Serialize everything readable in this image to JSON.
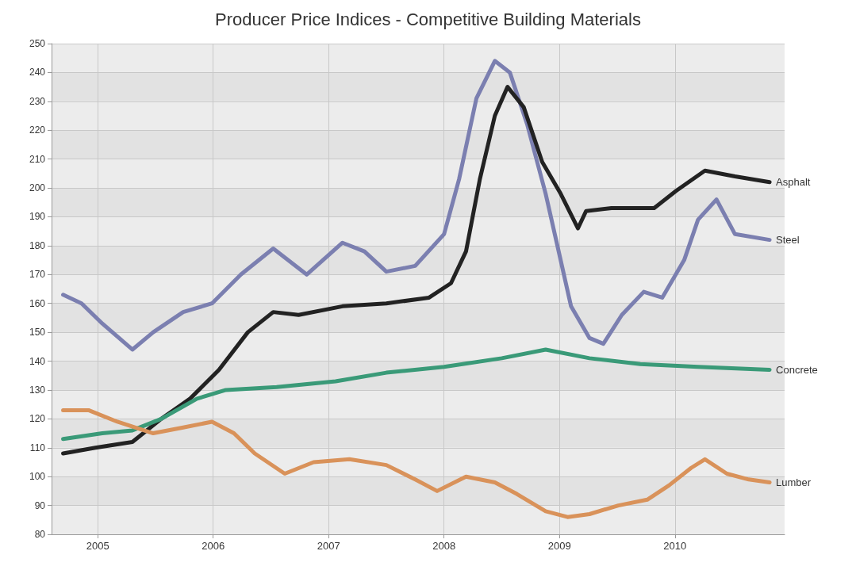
{
  "chart_data": {
    "type": "line",
    "title": "Producer Price Indices - Competitive Building Materials",
    "xlim": [
      2004.6,
      2010.95
    ],
    "xticks": [
      2005,
      2006,
      2007,
      2008,
      2009,
      2010
    ],
    "ylim": [
      80,
      250
    ],
    "yticks": [
      80,
      90,
      100,
      110,
      120,
      130,
      140,
      150,
      160,
      170,
      180,
      190,
      200,
      210,
      220,
      230,
      240,
      250
    ],
    "grid": true,
    "legend": false,
    "marker": "none",
    "line_style": "solid",
    "series": [
      {
        "name": "Steel",
        "color": "#7b7fb0",
        "x": [
          2004.7,
          2004.86,
          2005.04,
          2005.3,
          2005.48,
          2005.74,
          2005.99,
          2006.24,
          2006.52,
          2006.81,
          2007.12,
          2007.31,
          2007.5,
          2007.75,
          2008.0,
          2008.13,
          2008.28,
          2008.44,
          2008.57,
          2008.72,
          2008.88,
          2009.01,
          2009.1,
          2009.26,
          2009.38,
          2009.54,
          2009.73,
          2009.89,
          2010.08,
          2010.2,
          2010.36,
          2010.52,
          2010.82
        ],
        "values": [
          163,
          160,
          153,
          144,
          150,
          157,
          160,
          170,
          179,
          170,
          181,
          178,
          171,
          173,
          184,
          203,
          231,
          244,
          240,
          222,
          198,
          175,
          159,
          148,
          146,
          156,
          164,
          162,
          175,
          189,
          196,
          184,
          182
        ]
      },
      {
        "name": "Asphalt",
        "color": "#222222",
        "x": [
          2004.7,
          2004.98,
          2005.3,
          2005.55,
          2005.8,
          2006.05,
          2006.3,
          2006.52,
          2006.74,
          2007.12,
          2007.5,
          2007.87,
          2008.06,
          2008.19,
          2008.31,
          2008.44,
          2008.55,
          2008.69,
          2008.85,
          2009.01,
          2009.16,
          2009.23,
          2009.45,
          2009.7,
          2009.82,
          2010.01,
          2010.26,
          2010.52,
          2010.82
        ],
        "values": [
          108,
          110,
          112,
          120,
          127,
          137,
          150,
          157,
          156,
          159,
          160,
          162,
          167,
          178,
          203,
          225,
          235,
          228,
          209,
          198,
          186,
          192,
          193,
          193,
          193,
          199,
          206,
          204,
          202
        ]
      },
      {
        "name": "Concrete",
        "color": "#3a9a78",
        "x": [
          2004.7,
          2005.04,
          2005.3,
          2005.55,
          2005.86,
          2006.11,
          2006.55,
          2007.06,
          2007.5,
          2008.0,
          2008.5,
          2008.88,
          2009.26,
          2009.7,
          2010.2,
          2010.82
        ],
        "values": [
          113,
          115,
          116,
          120,
          127,
          130,
          131,
          133,
          136,
          138,
          141,
          144,
          141,
          139,
          138,
          137
        ]
      },
      {
        "name": "Lumber",
        "color": "#d9925a",
        "x": [
          2004.7,
          2004.92,
          2005.17,
          2005.48,
          2005.74,
          2005.99,
          2006.18,
          2006.36,
          2006.62,
          2006.87,
          2007.18,
          2007.5,
          2007.75,
          2007.94,
          2008.19,
          2008.44,
          2008.63,
          2008.88,
          2009.07,
          2009.26,
          2009.51,
          2009.76,
          2009.95,
          2010.14,
          2010.26,
          2010.45,
          2010.64,
          2010.82
        ],
        "values": [
          123,
          123,
          119,
          115,
          117,
          119,
          115,
          108,
          101,
          105,
          106,
          104,
          99,
          95,
          100,
          98,
          94,
          88,
          86,
          87,
          90,
          92,
          97,
          103,
          106,
          101,
          99,
          98
        ]
      }
    ]
  }
}
